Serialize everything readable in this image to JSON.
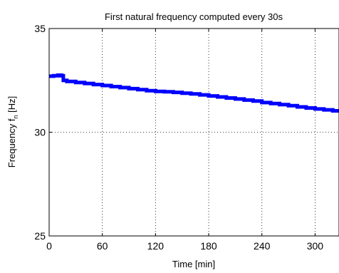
{
  "chart_data": {
    "type": "line",
    "title": "First natural frequency computed every 30s",
    "xlabel": "Time [min]",
    "ylabel_main": "Frequency f",
    "ylabel_sub": "n",
    "ylabel_unit": " [Hz]",
    "xlim": [
      0,
      327
    ],
    "ylim": [
      25,
      35
    ],
    "xticks": [
      0,
      60,
      120,
      180,
      240,
      300
    ],
    "yticks": [
      25,
      30,
      35
    ],
    "xtick_labels": [
      "0",
      "60",
      "120",
      "180",
      "240",
      "300"
    ],
    "ytick_labels": [
      "25",
      "30",
      "35"
    ],
    "grid": true,
    "series": [
      {
        "color": "#0000ff",
        "x": [
          0,
          5,
          10,
          14,
          16,
          20,
          30,
          40,
          50,
          60,
          70,
          80,
          90,
          100,
          110,
          120,
          130,
          140,
          150,
          160,
          170,
          180,
          190,
          200,
          210,
          220,
          230,
          240,
          250,
          260,
          270,
          280,
          290,
          300,
          310,
          320,
          327
        ],
        "y": [
          32.7,
          32.72,
          32.75,
          32.72,
          32.5,
          32.45,
          32.4,
          32.35,
          32.3,
          32.25,
          32.2,
          32.15,
          32.1,
          32.05,
          32.0,
          31.97,
          31.95,
          31.92,
          31.88,
          31.85,
          31.8,
          31.75,
          31.7,
          31.65,
          31.6,
          31.55,
          31.5,
          31.43,
          31.38,
          31.33,
          31.28,
          31.22,
          31.17,
          31.12,
          31.08,
          31.03,
          31.0
        ]
      }
    ]
  }
}
